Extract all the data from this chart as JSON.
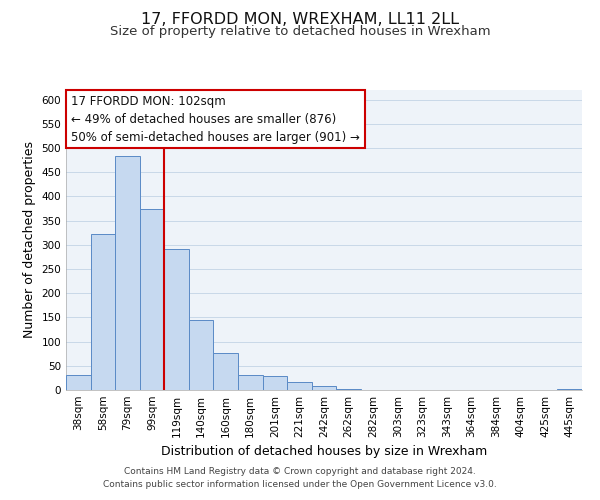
{
  "title": "17, FFORDD MON, WREXHAM, LL11 2LL",
  "subtitle": "Size of property relative to detached houses in Wrexham",
  "xlabel": "Distribution of detached houses by size in Wrexham",
  "ylabel": "Number of detached properties",
  "bar_labels": [
    "38sqm",
    "58sqm",
    "79sqm",
    "99sqm",
    "119sqm",
    "140sqm",
    "160sqm",
    "180sqm",
    "201sqm",
    "221sqm",
    "242sqm",
    "262sqm",
    "282sqm",
    "303sqm",
    "323sqm",
    "343sqm",
    "364sqm",
    "384sqm",
    "404sqm",
    "425sqm",
    "445sqm"
  ],
  "bar_heights": [
    32,
    322,
    483,
    375,
    291,
    145,
    76,
    32,
    29,
    17,
    8,
    2,
    1,
    1,
    0,
    0,
    0,
    0,
    0,
    0,
    3
  ],
  "bar_color": "#c6d9f0",
  "bar_edge_color": "#5a8ac6",
  "vline_x": 3.5,
  "vline_color": "#cc0000",
  "annotation_line1": "17 FFORDD MON: 102sqm",
  "annotation_line2": "← 49% of detached houses are smaller (876)",
  "annotation_line3": "50% of semi-detached houses are larger (901) →",
  "annotation_box_color": "#ffffff",
  "annotation_box_edge": "#cc0000",
  "ylim": [
    0,
    620
  ],
  "yticks": [
    0,
    50,
    100,
    150,
    200,
    250,
    300,
    350,
    400,
    450,
    500,
    550,
    600
  ],
  "footer_line1": "Contains HM Land Registry data © Crown copyright and database right 2024.",
  "footer_line2": "Contains public sector information licensed under the Open Government Licence v3.0.",
  "title_fontsize": 11.5,
  "subtitle_fontsize": 9.5,
  "xlabel_fontsize": 9,
  "ylabel_fontsize": 9,
  "tick_fontsize": 7.5,
  "annotation_fontsize": 8.5,
  "footer_fontsize": 6.5,
  "bg_color": "#eef3f9"
}
